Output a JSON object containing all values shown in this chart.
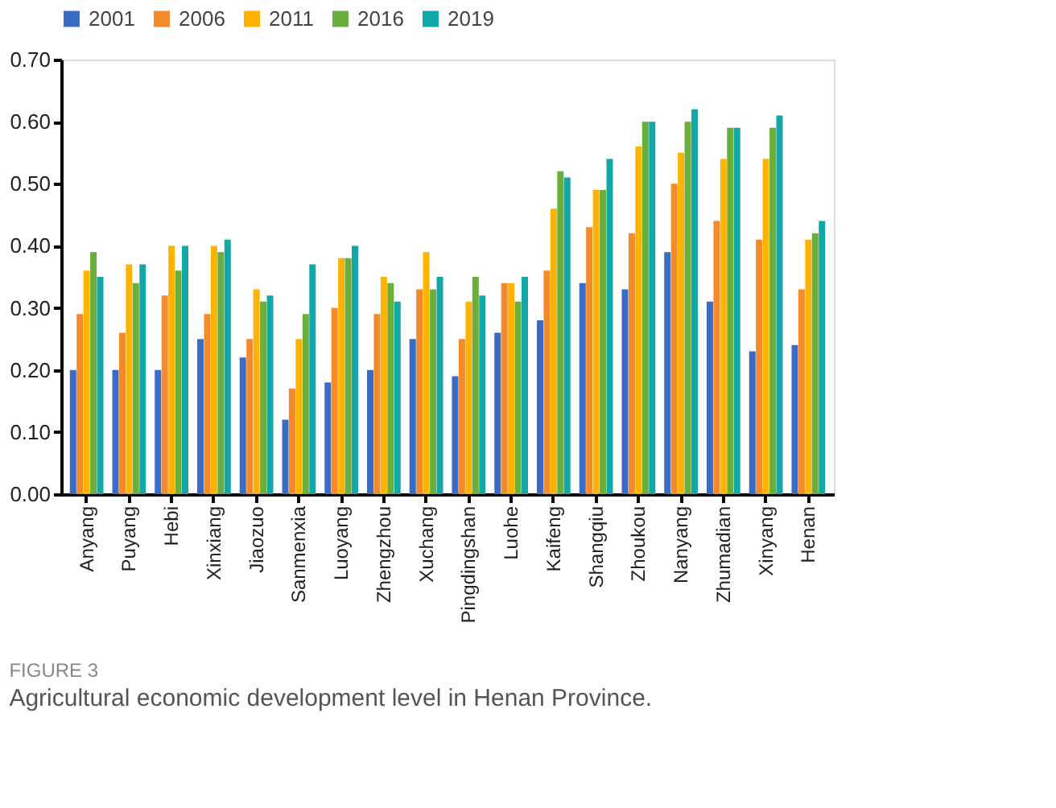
{
  "chart_data": {
    "type": "bar",
    "categories": [
      "Anyang",
      "Puyang",
      "Hebi",
      "Xinxiang",
      "Jiaozuo",
      "Sanmenxia",
      "Luoyang",
      "Zhengzhou",
      "Xuchang",
      "Pingdingshan",
      "Luohe",
      "Kaifeng",
      "Shangqiu",
      "Zhoukou",
      "Nanyang",
      "Zhumadian",
      "Xinyang",
      "Henan"
    ],
    "series": [
      {
        "name": "2001",
        "color": "#3a6cc6",
        "values": [
          0.2,
          0.2,
          0.2,
          0.25,
          0.22,
          0.12,
          0.18,
          0.2,
          0.25,
          0.19,
          0.26,
          0.28,
          0.34,
          0.33,
          0.39,
          0.31,
          0.23,
          0.24
        ]
      },
      {
        "name": "2006",
        "color": "#f58a2b",
        "values": [
          0.29,
          0.26,
          0.32,
          0.29,
          0.25,
          0.17,
          0.3,
          0.29,
          0.33,
          0.25,
          0.34,
          0.36,
          0.43,
          0.42,
          0.5,
          0.44,
          0.41,
          0.33
        ]
      },
      {
        "name": "2011",
        "color": "#ffb300",
        "values": [
          0.36,
          0.37,
          0.4,
          0.4,
          0.33,
          0.25,
          0.38,
          0.35,
          0.39,
          0.31,
          0.34,
          0.46,
          0.49,
          0.56,
          0.55,
          0.54,
          0.54,
          0.41
        ]
      },
      {
        "name": "2016",
        "color": "#6aaf3c",
        "values": [
          0.39,
          0.34,
          0.36,
          0.39,
          0.31,
          0.29,
          0.38,
          0.34,
          0.33,
          0.35,
          0.31,
          0.52,
          0.49,
          0.6,
          0.6,
          0.59,
          0.59,
          0.42
        ]
      },
      {
        "name": "2019",
        "color": "#13a7a8",
        "values": [
          0.35,
          0.37,
          0.4,
          0.41,
          0.32,
          0.37,
          0.4,
          0.31,
          0.35,
          0.32,
          0.35,
          0.51,
          0.54,
          0.6,
          0.62,
          0.59,
          0.61,
          0.44
        ]
      }
    ],
    "ylim": [
      0,
      0.7
    ],
    "yticks": [
      {
        "value": 0,
        "label": "0.00"
      },
      {
        "value": 0.1,
        "label": "0.10"
      },
      {
        "value": 0.2,
        "label": "0.20"
      },
      {
        "value": 0.3,
        "label": "0.30"
      },
      {
        "value": 0.4,
        "label": "0.40"
      },
      {
        "value": 0.5,
        "label": "0.50"
      },
      {
        "value": 0.6,
        "label": "0.60"
      },
      {
        "value": 0.7,
        "label": "0.70"
      }
    ],
    "grid": false,
    "legend": "top",
    "annotations": [
      "FIGURE 3",
      "Agricultural economic development level in Henan Province."
    ]
  }
}
